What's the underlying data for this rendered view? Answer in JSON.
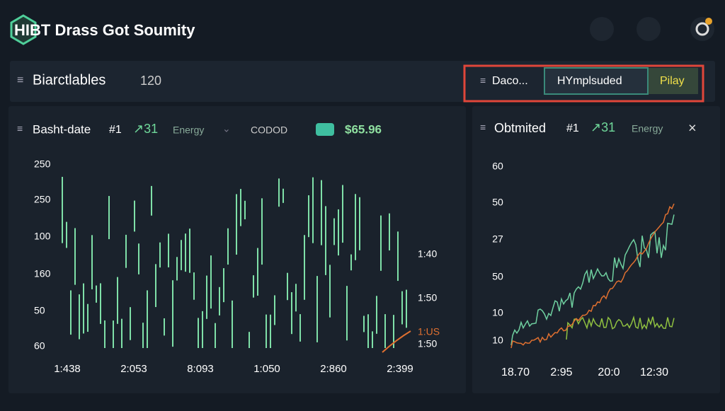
{
  "header": {
    "title": "HIBT Drass Got Soumity"
  },
  "toolbar": {
    "title": "Biarctlables",
    "count": "120",
    "menu": "Daco...",
    "tabs": [
      "HYmplsuded",
      "Pilay"
    ]
  },
  "panels": [
    {
      "title": "Basht-date",
      "tag": "#1",
      "change": "↗31",
      "label": "Energy",
      "code": "CODOD",
      "price": "$65.96",
      "y_labels": [
        "250",
        "250",
        "100",
        "160",
        "50",
        "60"
      ],
      "right_labels": [
        "1:40",
        "1:50",
        "1:US",
        "1:50"
      ],
      "x_labels": [
        "1:438",
        "2:053",
        "8:093",
        "1:050",
        "2:860",
        "2:399"
      ]
    },
    {
      "title": "Obtmited",
      "tag": "#1",
      "change": "↗31",
      "label": "Energy",
      "y_labels": [
        "60",
        "50",
        "27",
        "50",
        "10",
        "10"
      ],
      "x_labels": [
        "18.70",
        "2:95",
        "20:0",
        "12:30"
      ]
    }
  ]
}
